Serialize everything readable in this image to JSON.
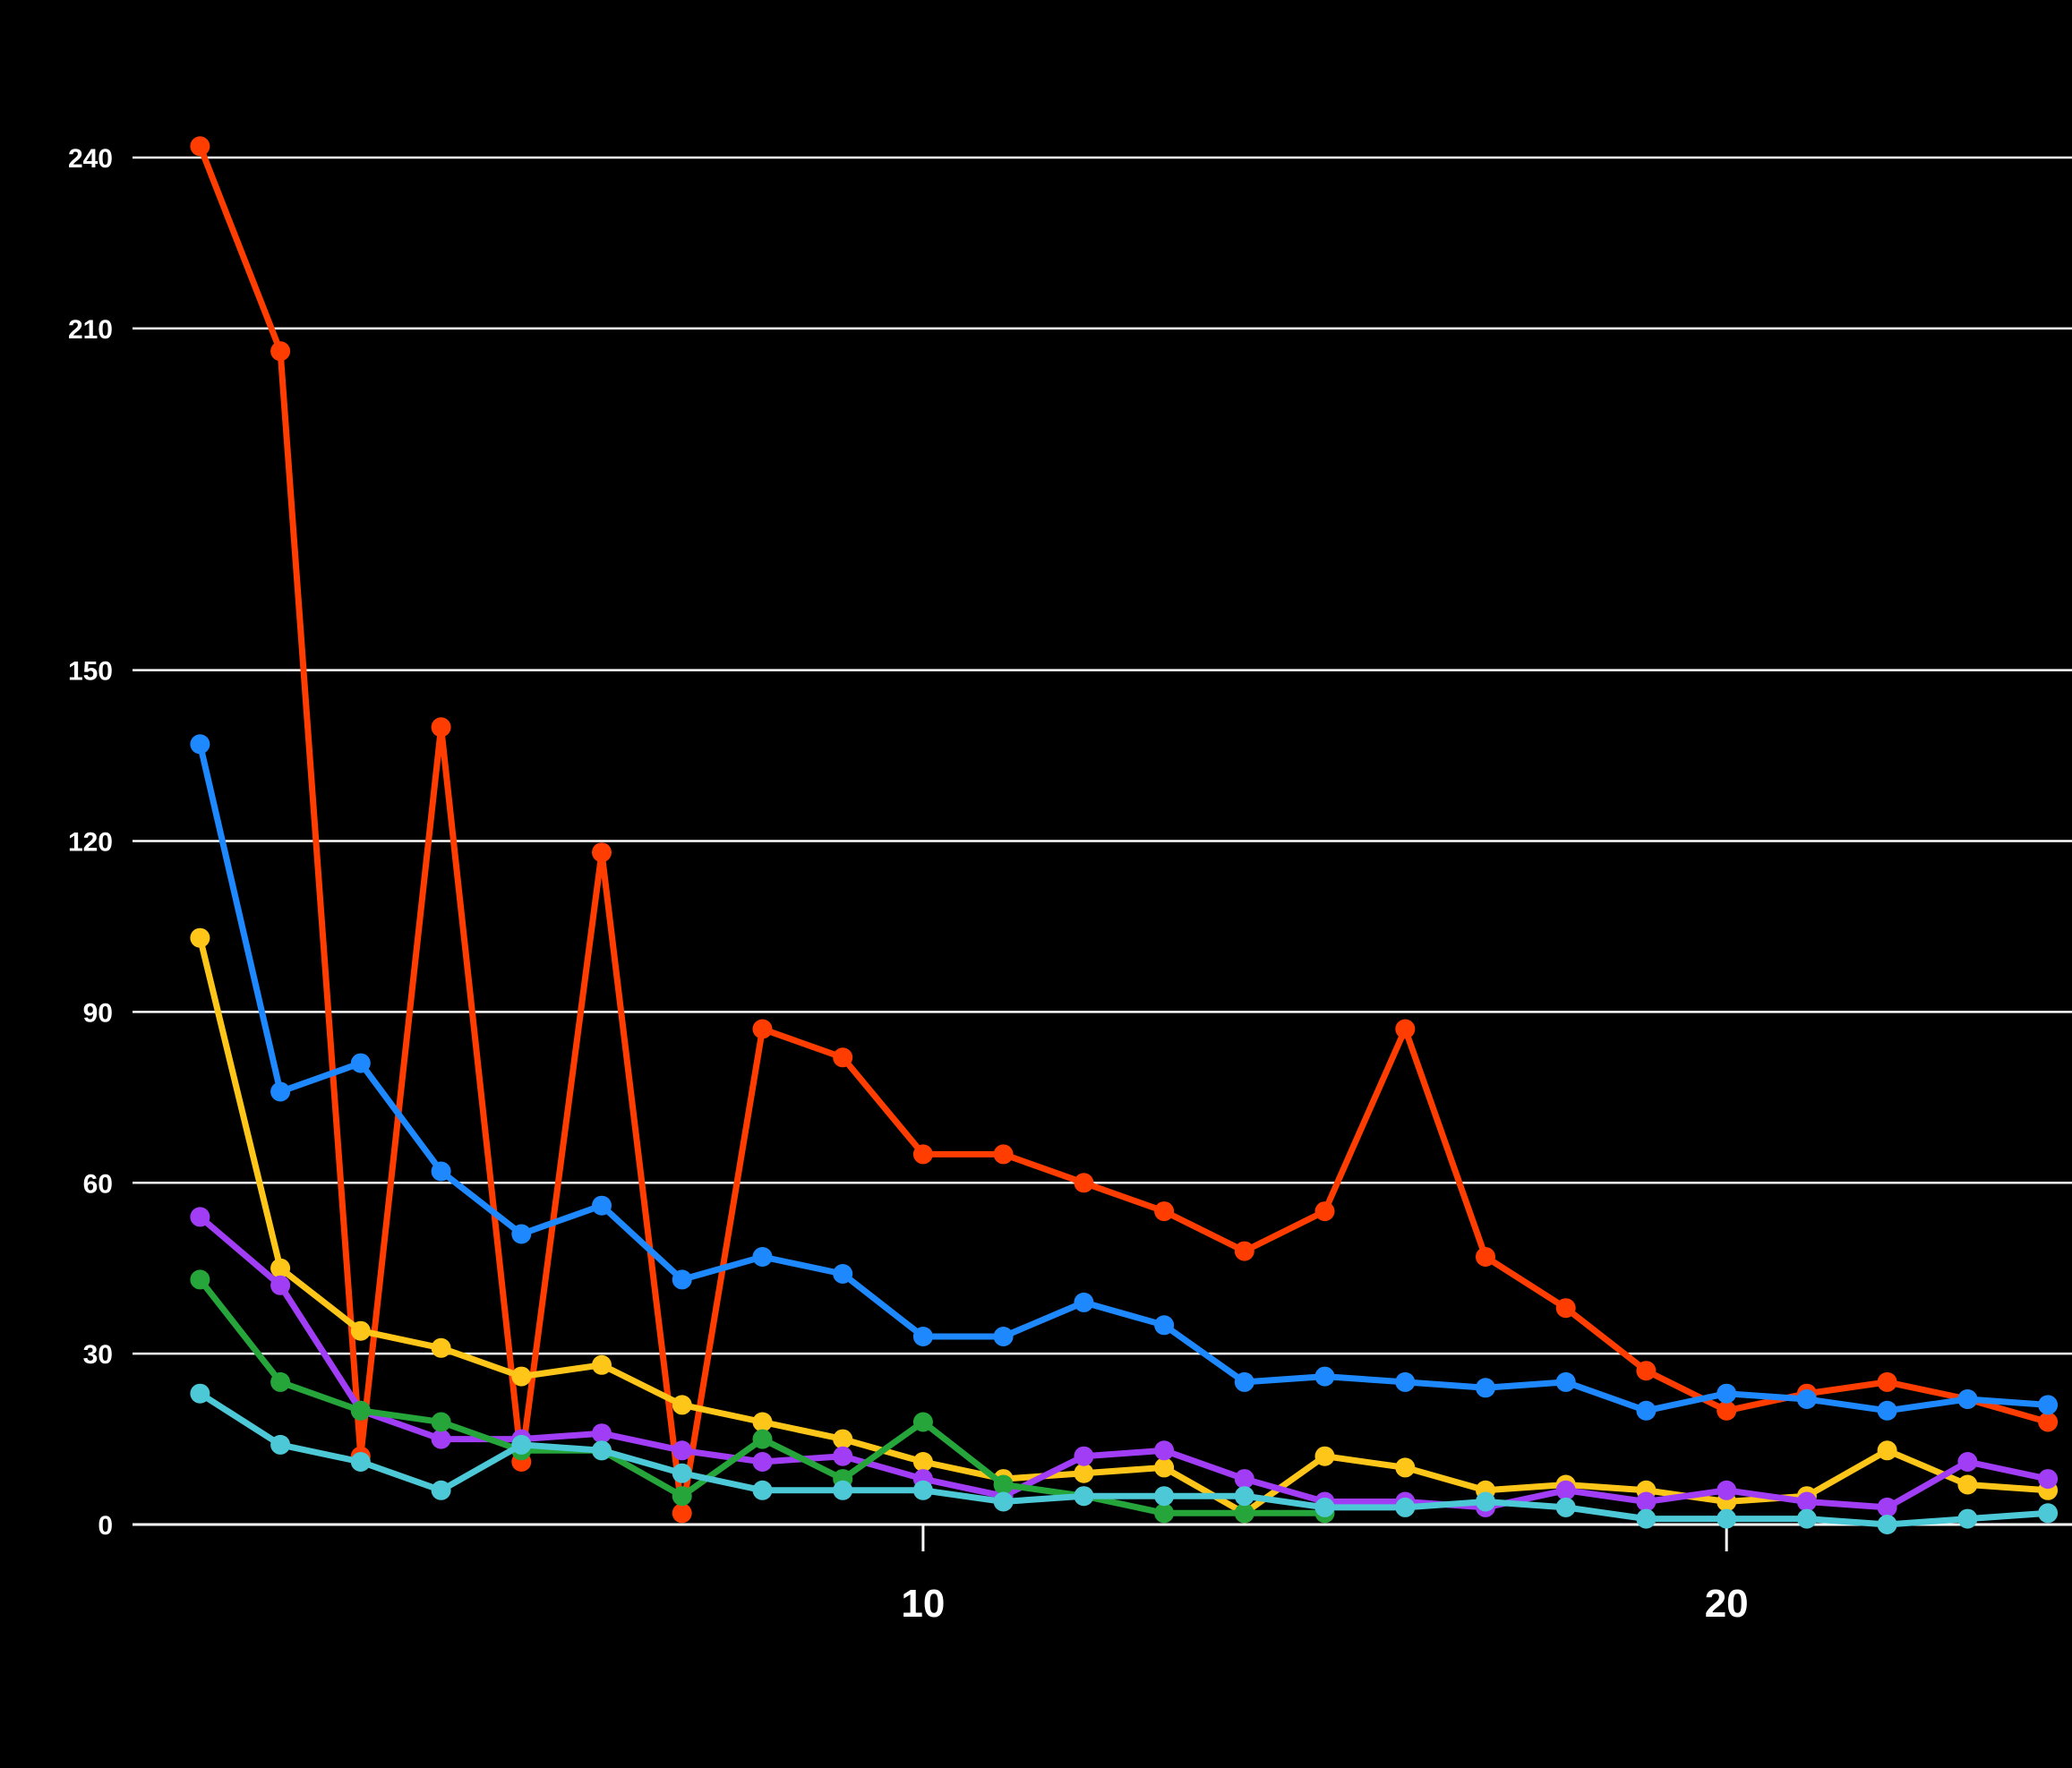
{
  "chart_data": {
    "type": "line",
    "x": [
      1,
      2,
      3,
      4,
      5,
      6,
      7,
      8,
      9,
      10,
      11,
      12,
      13,
      14,
      15,
      16,
      17,
      18,
      19,
      20,
      21,
      22,
      23,
      24
    ],
    "xlim": [
      0.16,
      24.3
    ],
    "ylim": [
      0,
      252
    ],
    "yticks": [
      0,
      30,
      60,
      90,
      120,
      150,
      210,
      240
    ],
    "ytick_labels": [
      "0",
      "30",
      "60",
      "90",
      "120",
      "150",
      "210",
      "240"
    ],
    "xticks": [
      10,
      20
    ],
    "xtick_labels": [
      "10",
      "20"
    ],
    "grid": true,
    "legend": "none",
    "series": [
      {
        "color": "#ff3d00",
        "values": [
          242,
          206,
          12,
          140,
          11,
          118,
          2,
          87,
          82,
          65,
          65,
          60,
          55,
          48,
          55,
          87,
          47,
          38,
          27,
          20,
          23,
          25,
          22,
          18
        ]
      },
      {
        "color": "#1e88ff",
        "values": [
          137,
          76,
          81,
          62,
          51,
          56,
          43,
          47,
          44,
          33,
          33,
          39,
          35,
          25,
          26,
          25,
          24,
          25,
          20,
          23,
          22,
          20,
          22,
          21
        ]
      },
      {
        "color": "#ffc61a",
        "values": [
          103,
          45,
          34,
          31,
          26,
          28,
          21,
          18,
          15,
          11,
          8,
          9,
          10,
          2,
          12,
          10,
          6,
          7,
          6,
          4,
          5,
          13,
          7,
          6
        ]
      },
      {
        "color": "#a13df5",
        "values": [
          54,
          42,
          20,
          15,
          15,
          16,
          13,
          11,
          12,
          8,
          5,
          12,
          13,
          8,
          4,
          4,
          3,
          6,
          4,
          6,
          4,
          3,
          11,
          8
        ]
      },
      {
        "color": "#25a53a",
        "values": [
          43,
          25,
          20,
          18,
          13,
          13,
          5,
          15,
          8,
          18,
          7,
          5,
          2,
          2,
          2,
          null,
          null,
          null,
          null,
          null,
          null,
          null,
          null,
          null
        ]
      },
      {
        "color": "#4dc8d6",
        "values": [
          23,
          14,
          11,
          6,
          14,
          13,
          9,
          6,
          6,
          6,
          4,
          5,
          5,
          5,
          3,
          3,
          4,
          3,
          1,
          1,
          1,
          0,
          1,
          2
        ]
      }
    ]
  }
}
